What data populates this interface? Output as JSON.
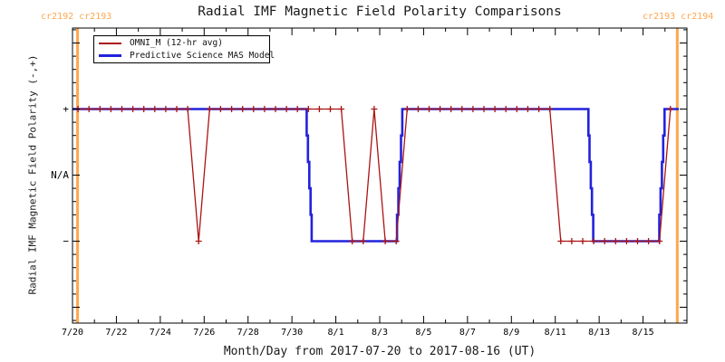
{
  "header": {
    "title": "Radial IMF Magnetic Field Polarity Comparisons",
    "cr_left": "cr2192 cr2193",
    "cr_right": "cr2193 cr2194"
  },
  "axes": {
    "x_label": "Month/Day from 2017-07-20 to 2017-08-16 (UT)",
    "y_label": "Radial IMF Magnetic Field Polarity (-,+)"
  },
  "legend": {
    "entries": [
      {
        "label": "OMNI_M (12-hr avg)",
        "color": "#AA1414"
      },
      {
        "label": "Predictive Science MAS Model",
        "color": "#2222DD"
      }
    ]
  },
  "colors": {
    "omni_red": "#AA1414",
    "mas_blue": "#2222DD",
    "carrington_orange": "#FFA64D",
    "frame_black": "#000000"
  },
  "chart_data": {
    "type": "line",
    "title": "Radial IMF Magnetic Field Polarity Comparisons",
    "xlabel": "Month/Day from 2017-07-20 to 2017-08-16 (UT)",
    "ylabel": "Radial IMF Magnetic Field Polarity (-,+)",
    "time_units": "days since 2017-07-20 00:00 UT",
    "value_legend": {
      "plus": 1,
      "na": 0,
      "minus": -1
    },
    "x_axis": {
      "start": "2017-07-20",
      "end": "2017-08-16",
      "days_span": 28,
      "major_tick_days": [
        0,
        2,
        4,
        6,
        8,
        10,
        12,
        14,
        16,
        18,
        20,
        22,
        24,
        26
      ],
      "major_tick_labels": [
        "7/20",
        "7/22",
        "7/24",
        "7/26",
        "7/28",
        "7/30",
        "8/1",
        "8/3",
        "8/5",
        "8/7",
        "8/9",
        "8/11",
        "8/13",
        "8/15"
      ],
      "minor_tick_days": [
        1,
        3,
        5,
        7,
        9,
        11,
        13,
        15,
        17,
        19,
        21,
        23,
        25,
        27
      ]
    },
    "y_axis": {
      "range": [
        -2.2,
        2.2
      ],
      "major_tick_values": [
        2,
        1,
        0,
        -1,
        -2
      ],
      "major_tick_labels": [
        "",
        "+",
        "N/A",
        "−",
        ""
      ],
      "minor_tick_step": 0.2
    },
    "series": [
      {
        "name": "Predictive Science MAS Model",
        "color": "#2222DD",
        "width": 2.6,
        "marker": "none",
        "render": "step",
        "points": [
          [
            0,
            1
          ],
          [
            10.6,
            1
          ],
          [
            10.67,
            0.6
          ],
          [
            10.73,
            0.2
          ],
          [
            10.79,
            -0.2
          ],
          [
            10.85,
            -0.6
          ],
          [
            10.9,
            -1
          ],
          [
            14.73,
            -1
          ],
          [
            14.79,
            -0.6
          ],
          [
            14.85,
            -0.2
          ],
          [
            14.91,
            0.2
          ],
          [
            14.97,
            0.6
          ],
          [
            15.03,
            1
          ],
          [
            23.45,
            1
          ],
          [
            23.51,
            0.6
          ],
          [
            23.56,
            0.2
          ],
          [
            23.62,
            -0.2
          ],
          [
            23.67,
            -0.6
          ],
          [
            23.73,
            -1
          ],
          [
            26.68,
            -1
          ],
          [
            26.74,
            -0.6
          ],
          [
            26.8,
            -0.2
          ],
          [
            26.86,
            0.2
          ],
          [
            26.92,
            0.6
          ],
          [
            26.98,
            1
          ],
          [
            27.63,
            1
          ]
        ]
      },
      {
        "name": "OMNI_M (12-hr avg)",
        "color": "#AA1414",
        "width": 1.3,
        "marker": "plus",
        "render": "linear",
        "points": [
          [
            0.25,
            1
          ],
          [
            0.75,
            1
          ],
          [
            1.25,
            1
          ],
          [
            1.75,
            1
          ],
          [
            2.25,
            1
          ],
          [
            2.75,
            1
          ],
          [
            3.25,
            1
          ],
          [
            3.75,
            1
          ],
          [
            4.25,
            1
          ],
          [
            4.75,
            1
          ],
          [
            5.25,
            1
          ],
          [
            5.75,
            -1
          ],
          [
            6.25,
            1
          ],
          [
            6.75,
            1
          ],
          [
            7.25,
            1
          ],
          [
            7.75,
            1
          ],
          [
            8.25,
            1
          ],
          [
            8.75,
            1
          ],
          [
            9.25,
            1
          ],
          [
            9.75,
            1
          ],
          [
            10.25,
            1
          ],
          [
            10.75,
            1
          ],
          [
            11.25,
            1
          ],
          [
            11.75,
            1
          ],
          [
            12.25,
            1
          ],
          [
            12.75,
            -1
          ],
          [
            13.25,
            -1
          ],
          [
            13.75,
            1
          ],
          [
            14.25,
            -1
          ],
          [
            14.75,
            -1
          ],
          [
            15.25,
            1
          ],
          [
            15.75,
            1
          ],
          [
            16.25,
            1
          ],
          [
            16.75,
            1
          ],
          [
            17.25,
            1
          ],
          [
            17.75,
            1
          ],
          [
            18.25,
            1
          ],
          [
            18.75,
            1
          ],
          [
            19.25,
            1
          ],
          [
            19.75,
            1
          ],
          [
            20.25,
            1
          ],
          [
            20.75,
            1
          ],
          [
            21.25,
            1
          ],
          [
            21.75,
            1
          ],
          [
            22.25,
            -1
          ],
          [
            22.75,
            -1
          ],
          [
            23.25,
            -1
          ],
          [
            23.75,
            -1
          ],
          [
            24.25,
            -1
          ],
          [
            24.75,
            -1
          ],
          [
            25.25,
            -1
          ],
          [
            25.75,
            -1
          ],
          [
            26.25,
            -1
          ],
          [
            26.75,
            -1
          ],
          [
            27.25,
            1
          ]
        ]
      }
    ],
    "carrington_boundaries": [
      {
        "t_days": 0.23,
        "label_left": "cr2192",
        "label_right": "cr2193"
      },
      {
        "t_days": 27.56,
        "label_left": "cr2193",
        "label_right": "cr2194"
      }
    ],
    "legend_position": "top-left-inside",
    "grid": false
  }
}
